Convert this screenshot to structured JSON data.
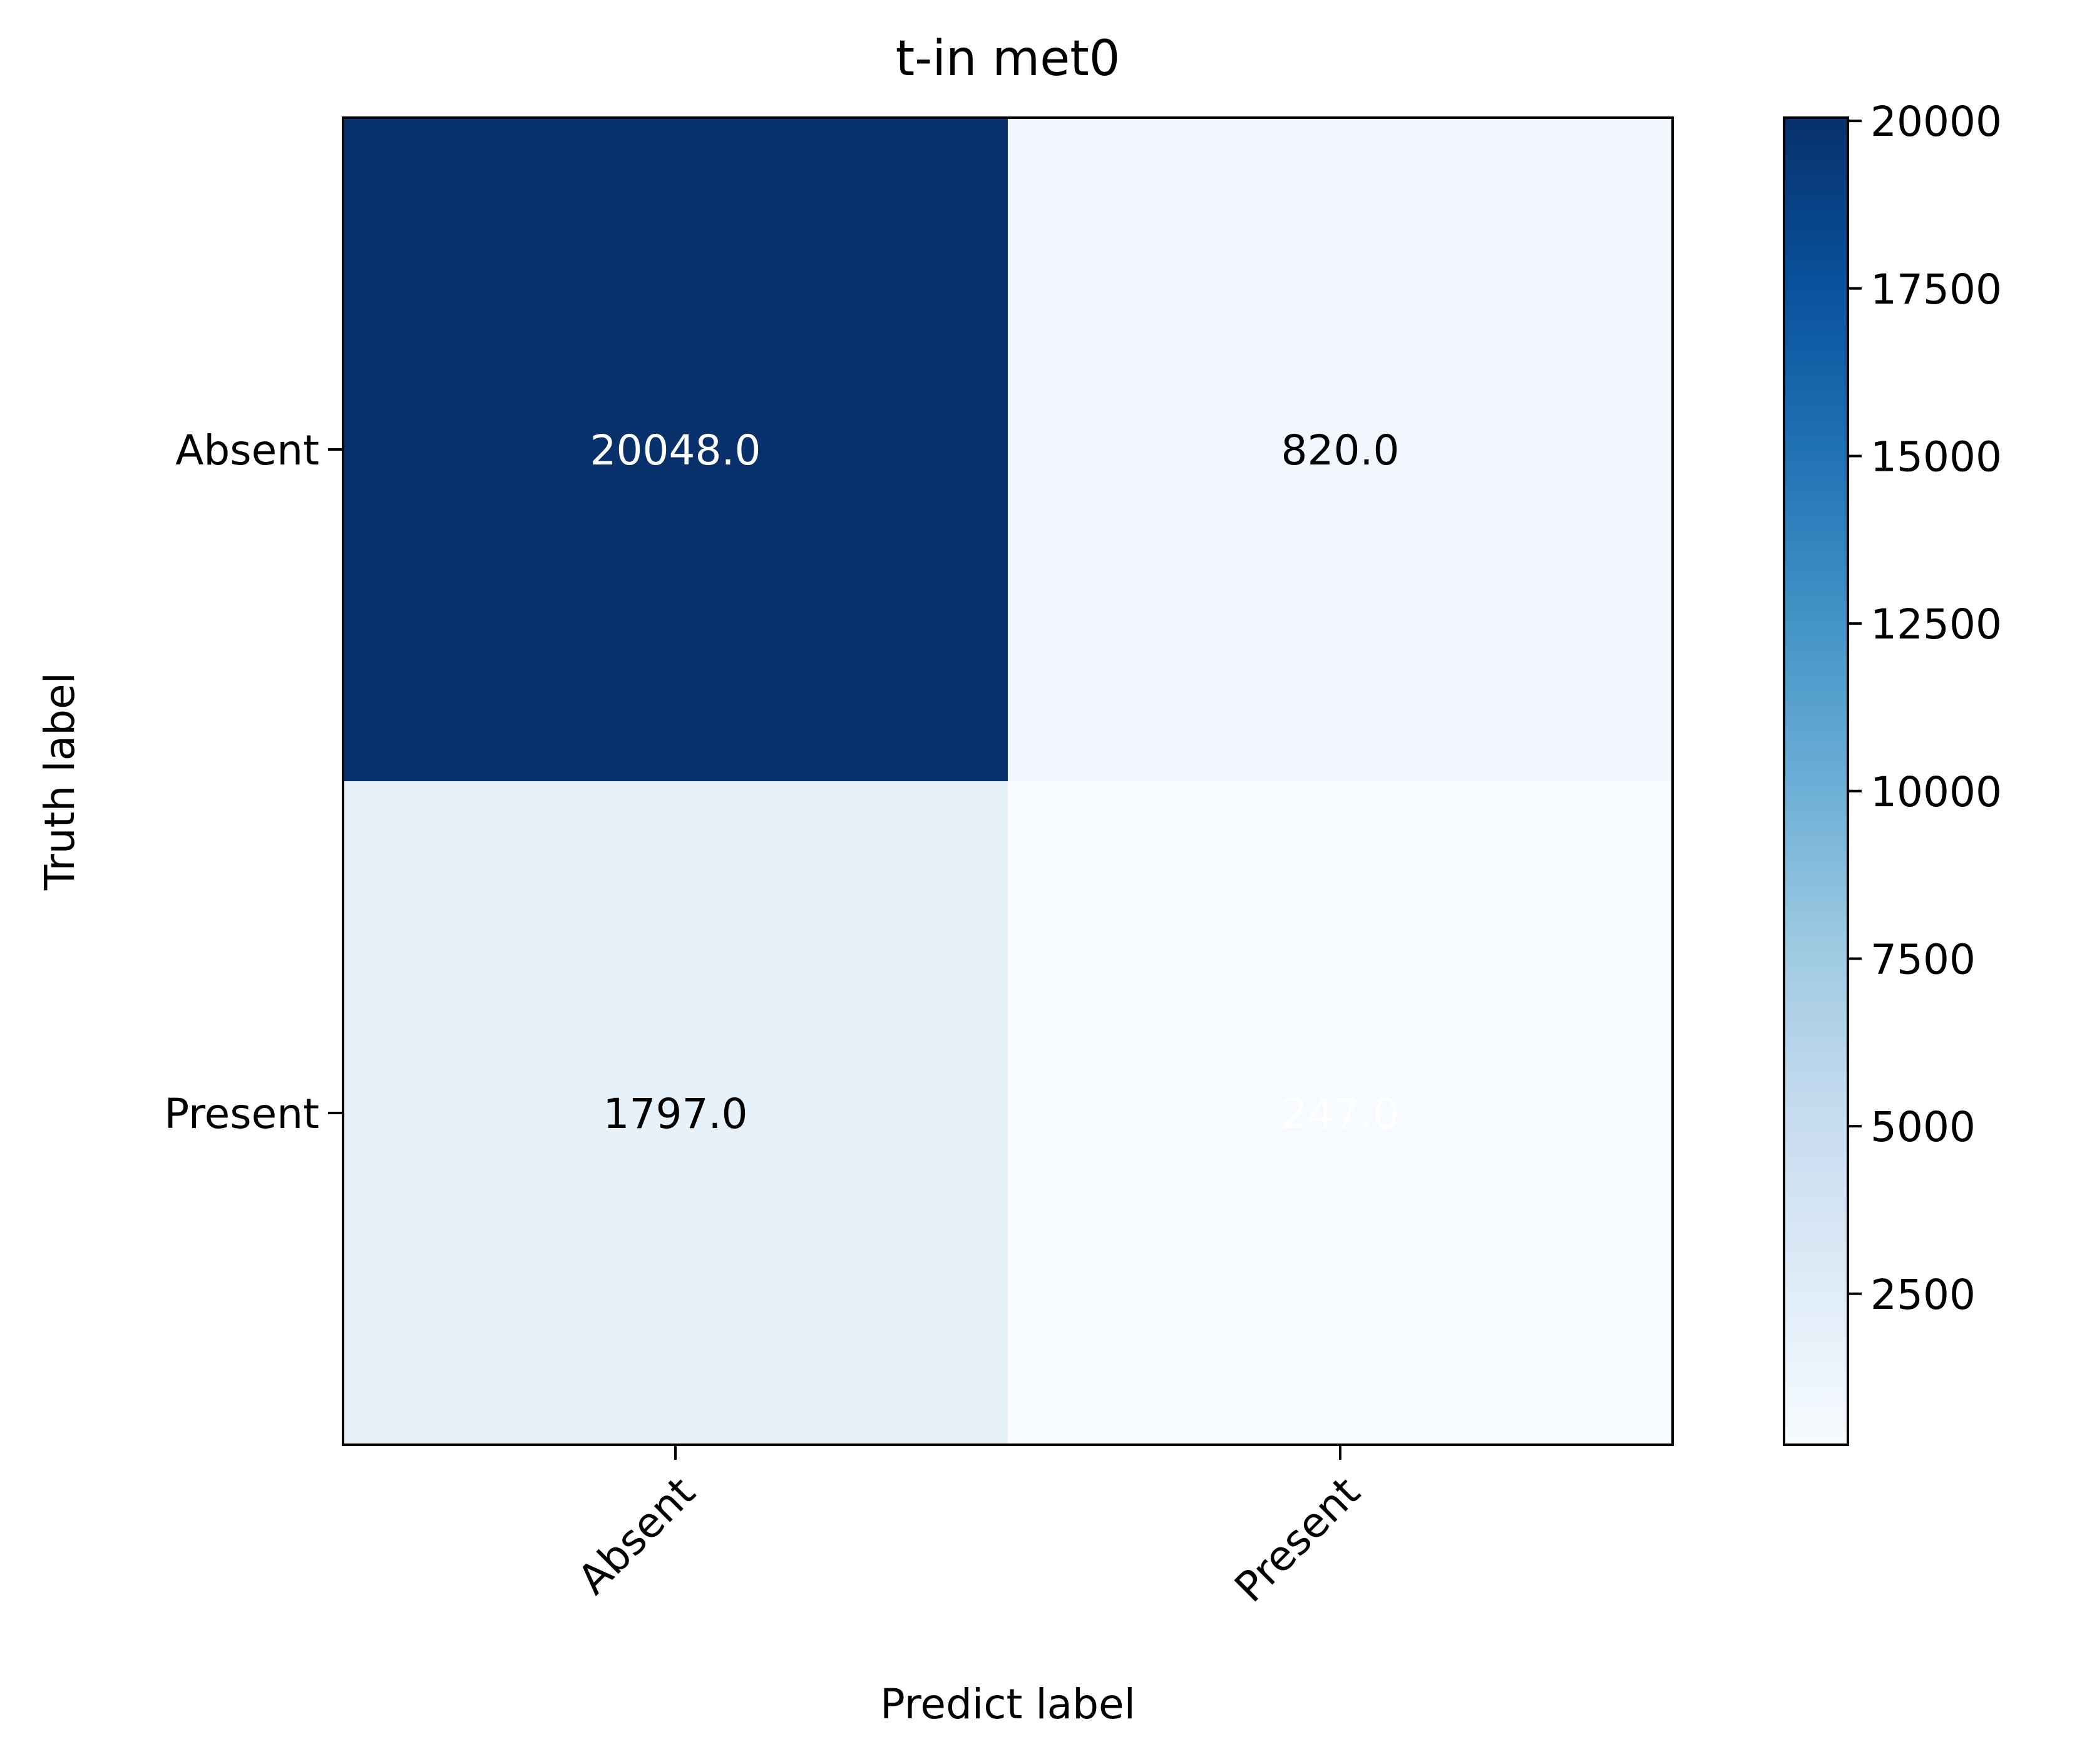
{
  "chart_data": {
    "type": "heatmap",
    "title": "t-in met0",
    "xlabel": "Predict label",
    "ylabel": "Truth label",
    "x_categories": [
      "Absent",
      "Present"
    ],
    "y_categories": [
      "Absent",
      "Present"
    ],
    "matrix": [
      [
        20048.0,
        820.0
      ],
      [
        1797.0,
        247.0
      ]
    ],
    "cell_labels": [
      [
        "20048.0",
        "820.0"
      ],
      [
        "1797.0",
        "247.0"
      ]
    ],
    "colormap": "Blues",
    "colorbar": {
      "min": 247,
      "max": 20048,
      "ticks": [
        2500,
        5000,
        7500,
        10000,
        12500,
        15000,
        17500,
        20000
      ],
      "tick_labels": [
        "2500",
        "5000",
        "7500",
        "10000",
        "12500",
        "15000",
        "17500",
        "20000"
      ]
    }
  }
}
